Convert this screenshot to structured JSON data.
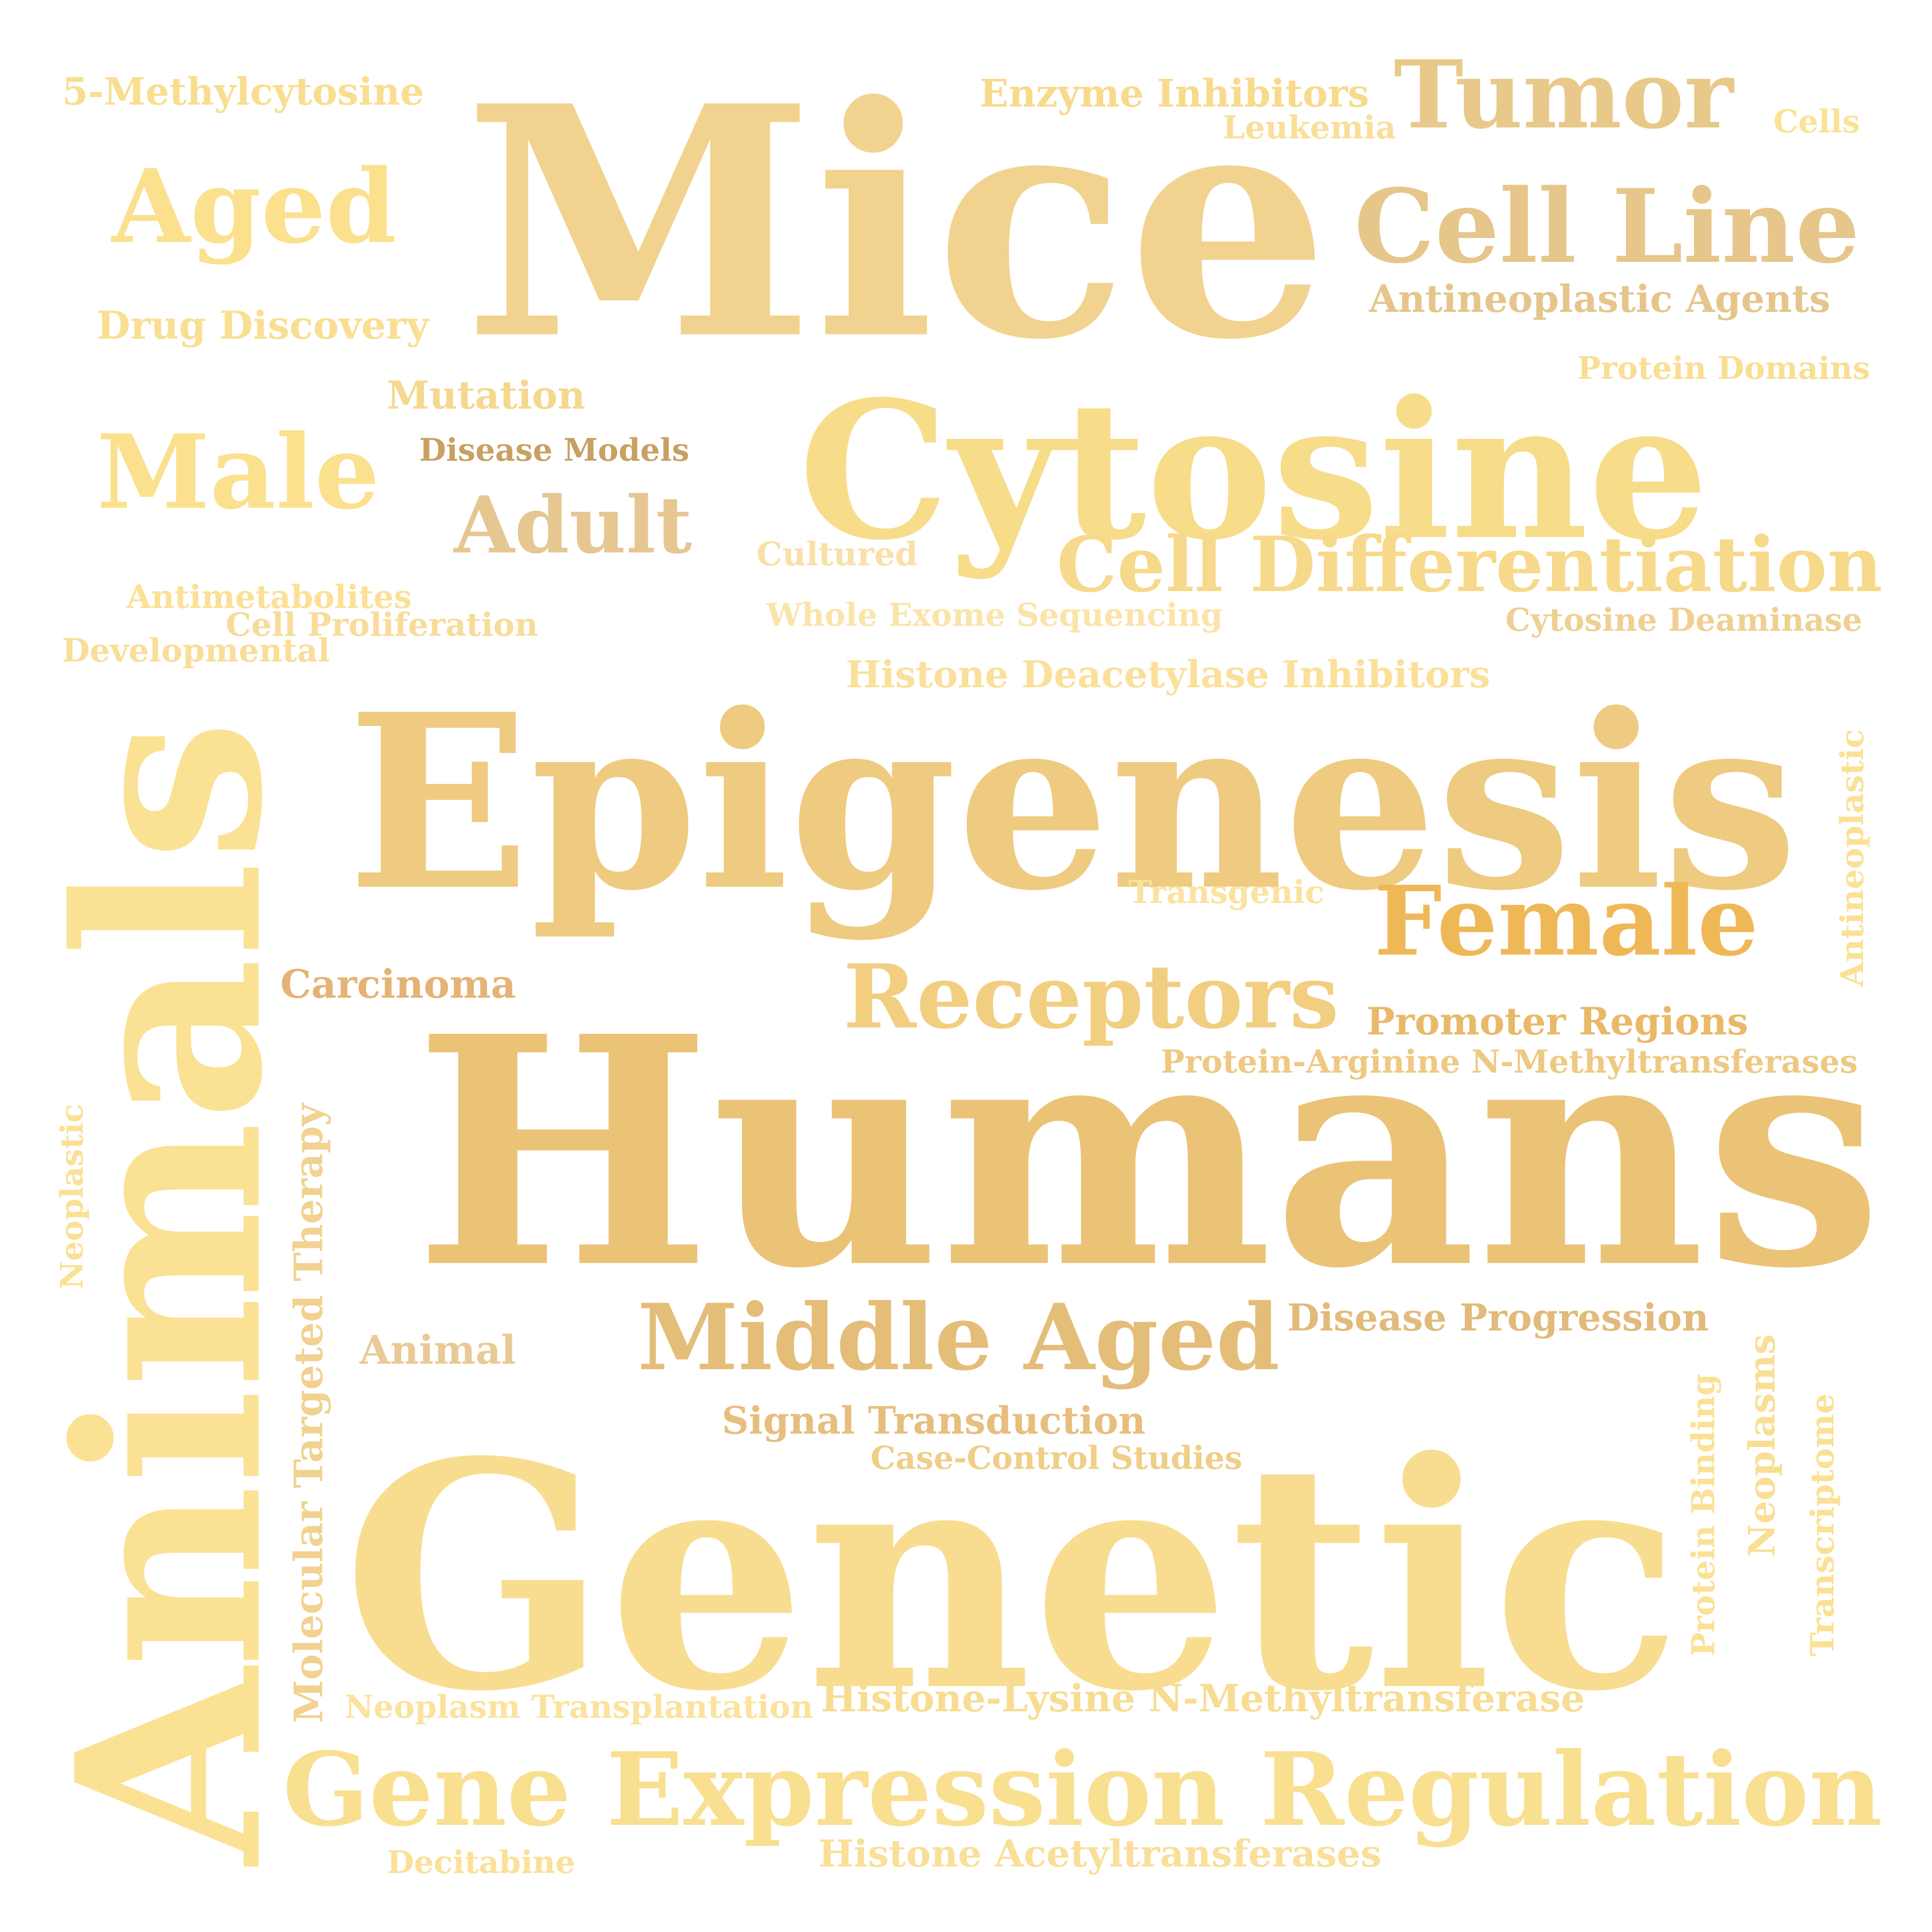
{
  "words": [
    {
      "text": "Mice",
      "color": "#f1d38f"
    },
    {
      "text": "Humans",
      "color": "#ebc377"
    },
    {
      "text": "Genetic",
      "color": "#f8dd91"
    },
    {
      "text": "Epigenesis",
      "color": "#eecb80"
    },
    {
      "text": "Animals",
      "color": "#fbe193"
    },
    {
      "text": "Cytosine",
      "color": "#f7dc8a"
    },
    {
      "text": "Gene Expression Regulation",
      "color": "#f9df90"
    },
    {
      "text": "Tumor",
      "color": "#e9c98a"
    },
    {
      "text": "Cell Line",
      "color": "#e6c68a"
    },
    {
      "text": "Cell Differentiation",
      "color": "#f6d98a"
    },
    {
      "text": "Middle Aged",
      "color": "#e4bd79"
    },
    {
      "text": "Receptors",
      "color": "#f2ce80"
    },
    {
      "text": "Female",
      "color": "#efb857"
    },
    {
      "text": "Aged",
      "color": "#fbe08e"
    },
    {
      "text": "Male",
      "color": "#fbe08e"
    },
    {
      "text": "Adult",
      "color": "#e6c792"
    },
    {
      "text": "5-Methylcytosine",
      "color": "#f9de90"
    },
    {
      "text": "Enzyme Inhibitors",
      "color": "#f7da8c"
    },
    {
      "text": "Leukemia",
      "color": "#f9df97"
    },
    {
      "text": "Cells",
      "color": "#fae396"
    },
    {
      "text": "Antineoplastic Agents",
      "color": "#e5c58c"
    },
    {
      "text": "Drug Discovery",
      "color": "#f9df91"
    },
    {
      "text": "Protein Domains",
      "color": "#f9df94"
    },
    {
      "text": "Mutation",
      "color": "#f5d88f"
    },
    {
      "text": "Disease Models",
      "color": "#c9a063"
    },
    {
      "text": "Cultured",
      "color": "#f8e0a8"
    },
    {
      "text": "Antimetabolites",
      "color": "#fbe096"
    },
    {
      "text": "Cell Proliferation",
      "color": "#f7dc9a"
    },
    {
      "text": "Developmental",
      "color": "#f9de98"
    },
    {
      "text": "Whole Exome Sequencing",
      "color": "#fae4a8"
    },
    {
      "text": "Cytosine Deaminase",
      "color": "#efd093"
    },
    {
      "text": "Histone Deacetylase Inhibitors",
      "color": "#fae09a"
    },
    {
      "text": "Transgenic",
      "color": "#fae39f"
    },
    {
      "text": "Antineoplastic",
      "color": "#fbe196"
    },
    {
      "text": "Carcinoma",
      "color": "#e4b376"
    },
    {
      "text": "Promoter Regions",
      "color": "#e9b96a"
    },
    {
      "text": "Protein-Arginine N-Methyltransferases",
      "color": "#eec983"
    },
    {
      "text": "Neoplastic",
      "color": "#fbe196"
    },
    {
      "text": "Molecular Targeted Therapy",
      "color": "#f1d290"
    },
    {
      "text": "Animal",
      "color": "#e9ca97"
    },
    {
      "text": "Disease Progression",
      "color": "#e2ba7b"
    },
    {
      "text": "Signal Transduction",
      "color": "#e6be7d"
    },
    {
      "text": "Case-Control Studies",
      "color": "#efce86"
    },
    {
      "text": "Protein Binding",
      "color": "#fbe196"
    },
    {
      "text": "Neoplasms",
      "color": "#f9df94"
    },
    {
      "text": "Transcriptome",
      "color": "#fbe196"
    },
    {
      "text": "Neoplasm Transplantation",
      "color": "#fbe39d"
    },
    {
      "text": "Histone-Lysine N-Methyltransferase",
      "color": "#f7dc92"
    },
    {
      "text": "Decitabine",
      "color": "#fae099"
    },
    {
      "text": "Histone Acetyltransferases",
      "color": "#f9df99"
    }
  ]
}
